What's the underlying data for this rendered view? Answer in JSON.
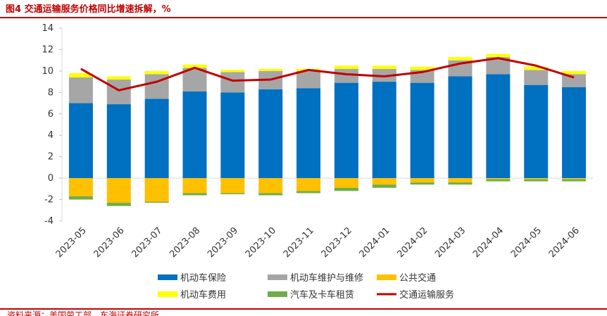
{
  "figure": {
    "title": "图4 交通运输服务价格同比增速拆解，%",
    "source": "资料来源：美国劳工部，东海证券研究所"
  },
  "chart_data": {
    "type": "bar",
    "stacked": true,
    "categories": [
      "2023-05",
      "2023-06",
      "2023-07",
      "2023-08",
      "2023-09",
      "2023-10",
      "2023-11",
      "2023-12",
      "2024-01",
      "2024-02",
      "2024-03",
      "2024-04",
      "2024-05",
      "2024-06"
    ],
    "ylim": [
      -4,
      14
    ],
    "yticks": [
      "14",
      "12",
      "10",
      "8",
      "6",
      "4",
      "2",
      "0",
      "-2",
      "-4"
    ],
    "legend_position": "bottom",
    "series": [
      {
        "name": "机动车保险",
        "kind": "bar",
        "color": "#0070c0",
        "values": [
          7.0,
          6.9,
          7.4,
          8.1,
          8.0,
          8.3,
          8.4,
          8.9,
          9.0,
          8.9,
          9.5,
          9.7,
          8.7,
          8.5
        ]
      },
      {
        "name": "机动车维护与维修",
        "kind": "bar",
        "color": "#a6a6a6",
        "values": [
          2.4,
          2.3,
          2.3,
          2.2,
          1.9,
          1.7,
          1.6,
          1.3,
          1.2,
          1.2,
          1.5,
          1.6,
          1.4,
          1.2
        ]
      },
      {
        "name": "公共交通",
        "kind": "bar",
        "color": "#ffc000",
        "values": [
          -1.7,
          -2.3,
          -2.2,
          -1.4,
          -1.4,
          -1.4,
          -1.2,
          -0.9,
          -0.6,
          -0.4,
          -0.4,
          -0.1,
          -0.1,
          -0.1
        ]
      },
      {
        "name": "机动车费用",
        "kind": "bar",
        "color": "#ffff00",
        "values": [
          0.4,
          0.3,
          0.3,
          0.3,
          0.2,
          0.2,
          0.2,
          0.3,
          0.3,
          0.3,
          0.3,
          0.3,
          0.3,
          0.3
        ]
      },
      {
        "name": "汽车及卡车租赁",
        "kind": "bar",
        "color": "#70ad47",
        "values": [
          -0.3,
          -0.3,
          -0.1,
          -0.2,
          -0.1,
          -0.2,
          -0.2,
          -0.3,
          -0.3,
          -0.2,
          -0.2,
          -0.2,
          -0.2,
          -0.2
        ]
      },
      {
        "name": "交通运输服务",
        "kind": "line",
        "color": "#c00000",
        "values": [
          10.2,
          8.2,
          9.0,
          10.3,
          9.1,
          9.2,
          10.1,
          9.7,
          9.5,
          9.9,
          10.7,
          11.2,
          10.5,
          9.4
        ]
      }
    ]
  }
}
